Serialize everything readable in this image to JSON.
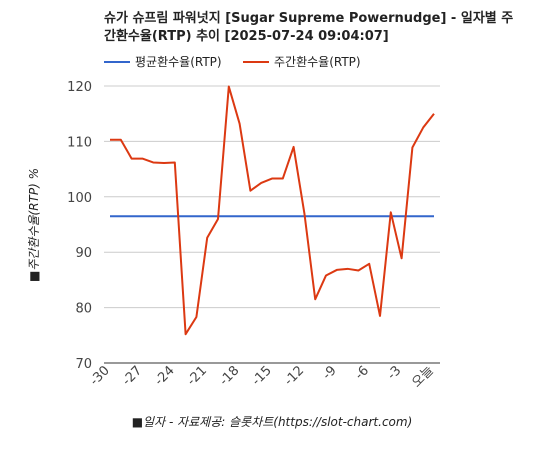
{
  "chart_data": {
    "type": "line",
    "title": "슈가 슈프림 파워넛지 [Sugar Supreme Powernudge] - 일자별 주간환수율(RTP) 추이 [2025-07-24 09:04:07]",
    "xlabel": "■일자 - 자료제공: 슬롯차트(https://slot-chart.com)",
    "ylabel": "■주간환수율(RTP) %",
    "ylim": [
      70,
      120
    ],
    "yticks": [
      "70",
      "80",
      "90",
      "100",
      "110",
      "120"
    ],
    "xticks": [
      "-30",
      "-27",
      "-24",
      "-21",
      "-18",
      "-15",
      "-12",
      "-9",
      "-6",
      "-3",
      "오늘"
    ],
    "grid": true,
    "legend": "top",
    "x": [
      -30,
      -29,
      -28,
      -27,
      -26,
      -25,
      -24,
      -23,
      -22,
      -21,
      -20,
      -19,
      -18,
      -17,
      -16,
      -15,
      -14,
      -13,
      -12,
      -11,
      -10,
      -9,
      -8,
      -7,
      -6,
      -5,
      -4,
      -3,
      -2,
      -1,
      0
    ],
    "series": [
      {
        "name": "평균환수율(RTP)",
        "color": "#3366cc",
        "values": [
          96.5,
          96.5,
          96.5,
          96.5,
          96.5,
          96.5,
          96.5,
          96.5,
          96.5,
          96.5,
          96.5,
          96.5,
          96.5,
          96.5,
          96.5,
          96.5,
          96.5,
          96.5,
          96.5,
          96.5,
          96.5,
          96.5,
          96.5,
          96.5,
          96.5,
          96.5,
          96.5,
          96.5,
          96.5,
          96.5,
          96.5
        ]
      },
      {
        "name": "주간환수율(RTP)",
        "color": "#dc3912",
        "values": [
          110.3,
          110.3,
          106.9,
          106.9,
          106.2,
          106.1,
          106.2,
          75.2,
          78.3,
          92.6,
          96.0,
          119.9,
          113.2,
          101.1,
          102.5,
          103.3,
          103.3,
          109.0,
          97.0,
          81.5,
          85.8,
          86.8,
          87.0,
          86.7,
          87.9,
          78.5,
          97.2,
          88.9,
          108.9,
          112.5,
          115.0
        ]
      }
    ]
  }
}
